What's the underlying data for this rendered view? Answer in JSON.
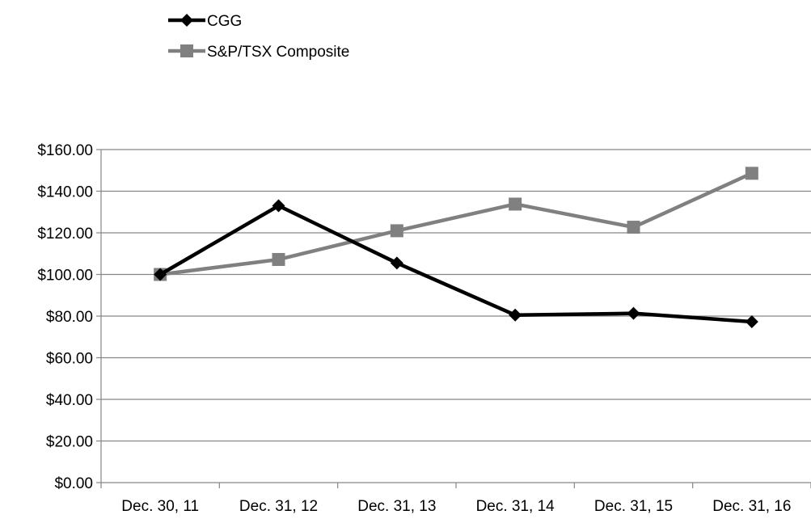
{
  "chart_data": {
    "type": "line",
    "title": "",
    "xlabel": "",
    "ylabel": "",
    "categories": [
      "Dec. 30, 11",
      "Dec. 31, 12",
      "Dec. 31, 13",
      "Dec. 31, 14",
      "Dec. 31, 15",
      "Dec. 31, 16"
    ],
    "ylim": [
      0,
      160
    ],
    "yticks": [
      0,
      20,
      40,
      60,
      80,
      100,
      120,
      140,
      160
    ],
    "ytick_labels": [
      "$0.00",
      "$20.00",
      "$40.00",
      "$60.00",
      "$80.00",
      "$100.00",
      "$120.00",
      "$140.00",
      "$160.00"
    ],
    "grid": true,
    "legend_position": "top-left",
    "series": [
      {
        "name": "CGG",
        "values": [
          100,
          133,
          105.5,
          80.5,
          81.3,
          77.3
        ],
        "color": "#000000",
        "marker": "diamond"
      },
      {
        "name": "S&P/TSX Composite",
        "values": [
          100,
          107.2,
          121,
          133.8,
          122.7,
          148.6
        ],
        "color": "#808080",
        "marker": "square"
      }
    ]
  }
}
